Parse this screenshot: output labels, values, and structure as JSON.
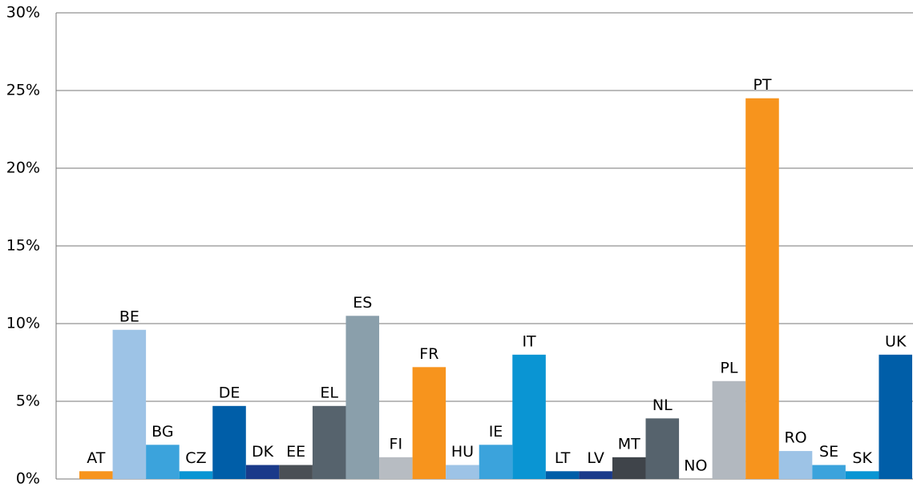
{
  "chart_data": {
    "type": "bar",
    "categories": [
      "AT",
      "BE",
      "BG",
      "CZ",
      "DE",
      "DK",
      "EE",
      "EL",
      "ES",
      "FI",
      "FR",
      "HU",
      "IE",
      "IT",
      "LT",
      "LV",
      "MT",
      "NL",
      "NO",
      "PL",
      "PT",
      "RO",
      "SE",
      "SK",
      "UK"
    ],
    "values": [
      0.5,
      9.6,
      2.2,
      0.5,
      4.7,
      0.9,
      0.9,
      4.7,
      10.5,
      1.4,
      7.2,
      0.9,
      2.2,
      8.0,
      0.5,
      0.5,
      1.4,
      3.9,
      0,
      6.3,
      24.5,
      1.8,
      0.9,
      0.5,
      8.0
    ],
    "colors": [
      "#f7941d",
      "#9dc3e6",
      "#3ba3dc",
      "#0a95d3",
      "#005ea8",
      "#1a3a8a",
      "#4a4f55",
      "#56636d",
      "#8a9fab",
      "#b7bcc2",
      "#f7941d",
      "#9dc3e6",
      "#3ba3dc",
      "#0a95d3",
      "#005ea8",
      "#1a3a8a",
      "#3f444a",
      "#56636d",
      "#8a9fab",
      "#b2b8bf",
      "#f7941d",
      "#9dc3e6",
      "#3ba3dc",
      "#0a95d3",
      "#005ea8"
    ],
    "ylim": [
      0,
      30
    ],
    "yticks": [
      {
        "value": 0,
        "label": "0%"
      },
      {
        "value": 5,
        "label": "5%"
      },
      {
        "value": 10,
        "label": "10%"
      },
      {
        "value": 15,
        "label": "15%"
      },
      {
        "value": 20,
        "label": "20%"
      },
      {
        "value": 25,
        "label": "25%"
      },
      {
        "value": 30,
        "label": "30%"
      }
    ],
    "grid": true
  }
}
